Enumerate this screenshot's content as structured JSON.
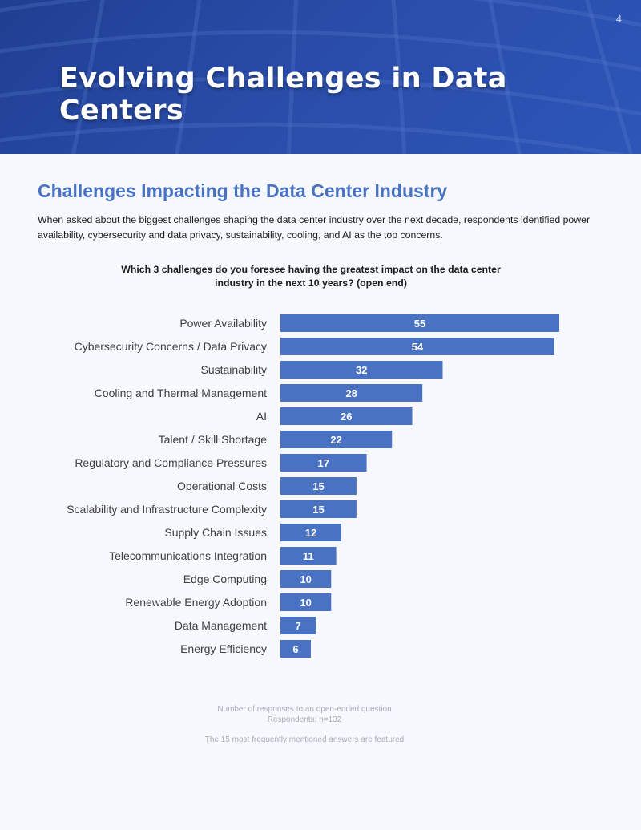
{
  "page": {
    "number": "4"
  },
  "header": {
    "title": "Evolving Challenges in Data Centers"
  },
  "section": {
    "title": "Challenges Impacting the Data Center Industry",
    "intro": "When asked about the biggest challenges shaping the data center industry over the next decade, respondents identified power availability, cybersecurity and data privacy, sustainability, cooling, and AI as the top concerns."
  },
  "colors": {
    "header": "#2a4ca8",
    "accent": "#4a72c2",
    "bar": "#4a72c2"
  },
  "chart_data": {
    "type": "bar",
    "orientation": "horizontal",
    "title": "Which 3 challenges do you foresee having the greatest impact on the data center industry in the next 10 years?  (open end)",
    "categories": [
      "Power Availability",
      "Cybersecurity Concerns / Data Privacy",
      "Sustainability",
      "Cooling and Thermal Management",
      "AI",
      "Talent / Skill Shortage",
      "Regulatory and Compliance Pressures",
      "Operational Costs",
      "Scalability and Infrastructure Complexity",
      "Supply Chain Issues",
      "Telecommunications Integration",
      "Edge Computing",
      "Renewable Energy Adoption",
      "Data Management",
      "Energy Efficiency"
    ],
    "values": [
      55,
      54,
      32,
      28,
      26,
      22,
      17,
      15,
      15,
      12,
      11,
      10,
      10,
      7,
      6
    ],
    "xlim": [
      0,
      55
    ],
    "grid": false,
    "data_labels": true
  },
  "footnotes": {
    "line1": "Number of responses to an open-ended question",
    "line2": "Respondents: n=132",
    "line3": "The 15 most frequently mentioned answers are featured"
  }
}
